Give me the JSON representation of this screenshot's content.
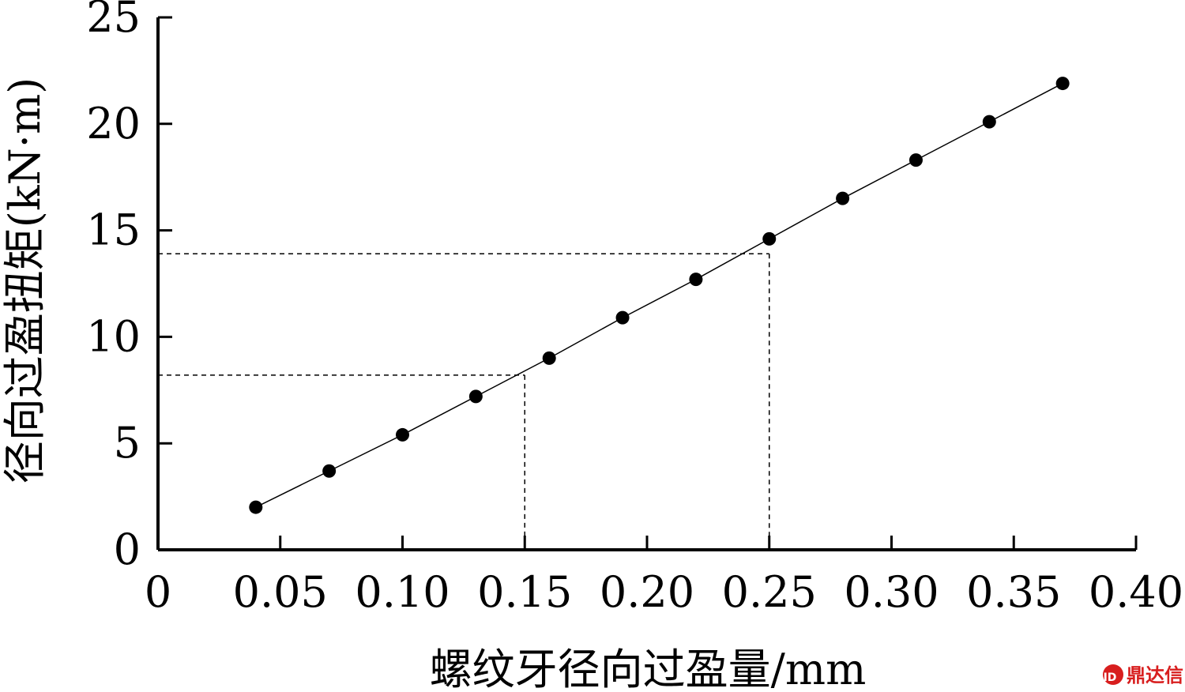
{
  "chart_data": {
    "type": "scatter",
    "title": "",
    "xlabel": "螺纹牙径向过盈量/mm",
    "ylabel": "径向过盈扭矩(kN·m)",
    "xlim": [
      0,
      0.4
    ],
    "ylim": [
      0,
      25
    ],
    "x_ticks": [
      "0",
      "0.05",
      "0.10",
      "0.15",
      "0.20",
      "0.25",
      "0.30",
      "0.35",
      "0.40"
    ],
    "y_ticks": [
      "0",
      "5",
      "10",
      "15",
      "20",
      "25"
    ],
    "grid": false,
    "connected": true,
    "series": [
      {
        "x": [
          0.04,
          0.07,
          0.1,
          0.13,
          0.16,
          0.19,
          0.22,
          0.25,
          0.28,
          0.31,
          0.34,
          0.37
        ],
        "y": [
          2.0,
          3.7,
          5.4,
          7.2,
          9.0,
          10.9,
          12.7,
          14.6,
          16.5,
          18.3,
          20.1,
          21.9
        ]
      }
    ],
    "reference_lines": [
      {
        "x": 0.15,
        "y": 8.2
      },
      {
        "x": 0.25,
        "y": 13.9
      }
    ]
  },
  "watermark": {
    "icon": "ddx-logo-icon",
    "text": "鼎达信",
    "color": "#d81e1e"
  }
}
